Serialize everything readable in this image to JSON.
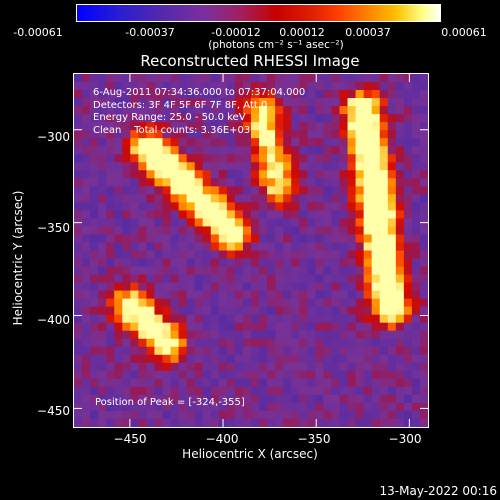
{
  "colorbar": {
    "ticks": [
      "-0.00061",
      "-0.00037",
      "-0.00012",
      "0.00012",
      "0.00037",
      "0.00061"
    ],
    "units": "(photons cm⁻² s⁻¹ asec⁻²)",
    "range": [
      -0.00061,
      0.00061
    ]
  },
  "chart_data": {
    "type": "heatmap",
    "title": "Reconstructed RHESSI Image",
    "xlabel": "Heliocentric X (arcsec)",
    "ylabel": "Heliocentric Y (arcsec)",
    "xlim": [
      -480,
      -290
    ],
    "ylim": [
      -460,
      -270
    ],
    "xticks": [
      -450,
      -400,
      -350,
      -300
    ],
    "yticks": [
      -300,
      -350,
      -400,
      -450
    ],
    "xtick_labels": [
      "−450",
      "−400",
      "−350",
      "−300"
    ],
    "ytick_labels": [
      "−300",
      "−350",
      "−400",
      "−450"
    ],
    "info_lines": [
      "6-Aug-2011 07:34:36.000 to 07:37:04.000",
      "Detectors: 3F 4F 5F 6F 7F 8F, Att 0",
      "Energy Range: 25.0 - 50.0 keV",
      "Clean    Total counts: 3.36E+03"
    ],
    "peak_label": "Position of Peak = [-324,-355]",
    "peak": [
      -324,
      -355
    ],
    "bright_ridges": [
      {
        "from": [
          -325,
          -290
        ],
        "to": [
          -310,
          -395
        ],
        "level": 0.9
      },
      {
        "from": [
          -440,
          -310
        ],
        "to": [
          -395,
          -355
        ],
        "level": 0.8
      },
      {
        "from": [
          -380,
          -290
        ],
        "to": [
          -370,
          -330
        ],
        "level": 0.6
      },
      {
        "from": [
          -450,
          -395
        ],
        "to": [
          -430,
          -415
        ],
        "level": 0.75
      }
    ]
  },
  "footer_date": "13-May-2022 00:16"
}
